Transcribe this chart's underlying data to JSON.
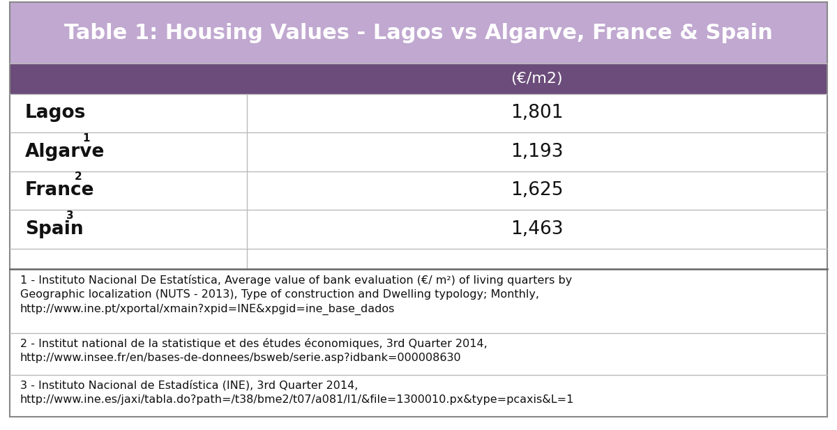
{
  "title": "Table 1: Housing Values - Lagos vs Algarve, France & Spain",
  "title_bg_color": "#c0a8d0",
  "title_text_color": "#ffffff",
  "header_bg_color": "#6b4c7a",
  "header_text_color": "#ffffff",
  "header_label": "(€/m2)",
  "rows": [
    {
      "label": "Lagos",
      "superscript": "",
      "value": "1,801"
    },
    {
      "label": "Algarve",
      "superscript": "1",
      "value": "1,193"
    },
    {
      "label": "France",
      "superscript": "2",
      "value": "1,625"
    },
    {
      "label": "Spain",
      "superscript": "3",
      "value": "1,463"
    },
    {
      "label": "",
      "superscript": "",
      "value": ""
    }
  ],
  "footnotes": [
    "1 - Instituto Nacional De Estatística, Average value of bank evaluation (€/ m²) of living quarters by\n\nGeographic localization (NUTS - 2013), Type of construction and Dwelling typology; Monthly,\n\nhttp://www.ine.pt/xportal/xmain?xpid=INE&xpgid=ine_base_dados",
    "2 - Institut national de la statistique et des études économiques, 3rd Quarter 2014,\n\nhttp://www.insee.fr/en/bases-de-donnees/bsweb/serie.asp?idbank=000008630",
    "3 - Instituto Nacional de Estadística (INE), 3rd Quarter 2014,\n\nhttp://www.ine.es/jaxi/tabla.do?path=/t38/bme2/t07/a081/l1/&file=1300010.px&type=pcaxis&L=1"
  ],
  "col_split": 0.295,
  "bg_color": "#ffffff",
  "border_color": "#bbbbbb",
  "title_fontsize": 22,
  "header_fontsize": 16,
  "row_fontsize": 19,
  "footnote_fontsize": 11.5
}
